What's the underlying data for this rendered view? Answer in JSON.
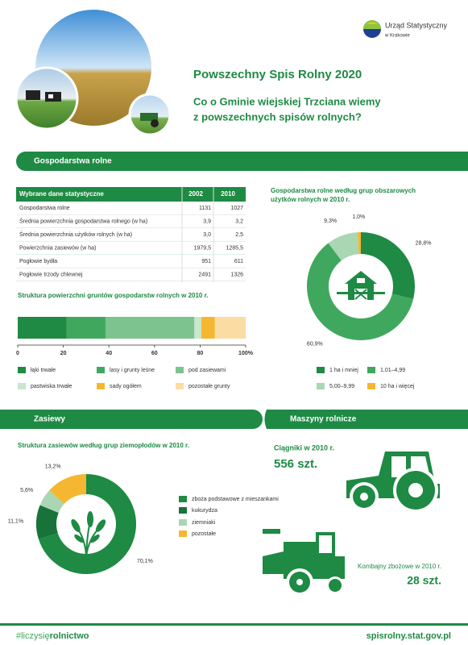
{
  "header": {
    "logo": [
      "Urząd Statystyczny",
      "w Krakowie"
    ],
    "title": "Powszechny Spis Rolny 2020",
    "subtitle": [
      "Co o Gminie wiejskiej Trzciana wiemy",
      "z powszechnych spisów rolnych?"
    ]
  },
  "sections": {
    "farms": "Gospodarstwa rolne",
    "crops": "Zasiewy",
    "machines": "Maszyny rolnicze"
  },
  "table": {
    "header": [
      "Wybrane dane statystyczne",
      "2002",
      "2010"
    ],
    "rows": [
      [
        "Gospodarstwa rolne",
        "1131",
        "1027"
      ],
      [
        "Średnia powierzchnia gospodarstwa rolnego (w ha)",
        "3,9",
        "3,2"
      ],
      [
        "Średnia powierzchnia użytków rolnych (w ha)",
        "3,0",
        "2,5"
      ],
      [
        "Powierzchnia zasiewów (w ha)",
        "1979,5",
        "1285,5"
      ],
      [
        "Pogłowie bydła",
        "951",
        "611"
      ],
      [
        "Pogłowie trzody chlewnej",
        "2491",
        "1326"
      ]
    ]
  },
  "chart_data": [
    {
      "type": "pie",
      "donut": true,
      "title": [
        "Gospodarstwa rolne według grup obszarowych",
        "użytków rolnych w 2010 r."
      ],
      "categories": [
        "1 ha i mniej",
        "1,01–4,99",
        "5,00–9,99",
        "10 ha i więcej"
      ],
      "values": [
        28.8,
        60.9,
        9.3,
        1.0
      ],
      "value_labels": [
        "28,8%",
        "60,9%",
        "9,3%",
        "1,0%"
      ],
      "colors": [
        "#1e8a44",
        "#3fa85e",
        "#a9d6b3",
        "#f5b731"
      ]
    },
    {
      "type": "bar",
      "stacked": true,
      "orientation": "horizontal",
      "title": "Struktura powierzchni gruntów gospodarstw rolnych w 2010 r.",
      "series": [
        {
          "name": "łąki trwałe",
          "color": "#1e8a44",
          "values": [
            21.5
          ]
        },
        {
          "name": "lasy i grunty leśne",
          "color": "#3fa85e",
          "values": [
            17
          ]
        },
        {
          "name": "pod zasiewami",
          "color": "#7cc38f",
          "values": [
            39
          ]
        },
        {
          "name": "pastwiska trwałe",
          "color": "#c9e6cf",
          "values": [
            3
          ]
        },
        {
          "name": "sady ogółem",
          "color": "#f5b731",
          "values": [
            6
          ]
        },
        {
          "name": "pozostałe grunty",
          "color": "#fbdca3",
          "values": [
            13.5
          ]
        }
      ],
      "xlim": [
        0,
        100
      ],
      "xticks": [
        0,
        20,
        40,
        60,
        80,
        {
          "value": 100,
          "label": "100%"
        }
      ]
    },
    {
      "type": "pie",
      "donut": true,
      "title": [
        "Struktura zasiewów według grup ziemopłodów w 2010 r."
      ],
      "categories": [
        "zboża podstawowe z mieszankami",
        "kukurydza",
        "ziemniaki",
        "pozostałe"
      ],
      "values": [
        70.1,
        11.1,
        5.6,
        13.2
      ],
      "value_labels": [
        "70,1%",
        "11,1%",
        "5,6%",
        "13,2%"
      ],
      "colors": [
        "#1e8a44",
        "#17733a",
        "#a9d6b3",
        "#f5b731"
      ]
    }
  ],
  "machines": {
    "tractors": {
      "label": "Ciągniki w 2010 r.",
      "count": "556 szt."
    },
    "combines": {
      "label": "Kombajny zbożowe w 2010 r.",
      "count": "28 szt."
    }
  },
  "footer": {
    "hashtag": [
      "#liczysię",
      "rolnictwo"
    ],
    "url": "spisrolny.stat.gov.pl"
  }
}
